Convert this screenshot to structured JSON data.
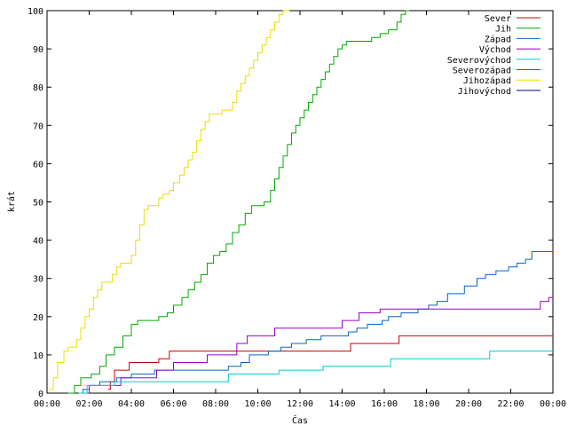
{
  "chart_data": {
    "type": "line",
    "xlabel": "Čas",
    "ylabel": "krát",
    "xlim": [
      0,
      24
    ],
    "ylim": [
      0,
      100
    ],
    "x_ticks": [
      {
        "v": 0,
        "label": "00:00"
      },
      {
        "v": 2,
        "label": "02:00"
      },
      {
        "v": 4,
        "label": "04:00"
      },
      {
        "v": 6,
        "label": "06:00"
      },
      {
        "v": 8,
        "label": "08:00"
      },
      {
        "v": 10,
        "label": "10:00"
      },
      {
        "v": 12,
        "label": "12:00"
      },
      {
        "v": 14,
        "label": "14:00"
      },
      {
        "v": 16,
        "label": "16:00"
      },
      {
        "v": 18,
        "label": "18:00"
      },
      {
        "v": 20,
        "label": "20:00"
      },
      {
        "v": 22,
        "label": "22:00"
      },
      {
        "v": 24,
        "label": "00:00"
      }
    ],
    "y_ticks": [
      {
        "v": 0,
        "label": "0"
      },
      {
        "v": 10,
        "label": "10"
      },
      {
        "v": 20,
        "label": "20"
      },
      {
        "v": 30,
        "label": "30"
      },
      {
        "v": 40,
        "label": "40"
      },
      {
        "v": 50,
        "label": "50"
      },
      {
        "v": 60,
        "label": "60"
      },
      {
        "v": 70,
        "label": "70"
      },
      {
        "v": 80,
        "label": "80"
      },
      {
        "v": 90,
        "label": "90"
      },
      {
        "v": 100,
        "label": "100"
      }
    ],
    "grid": false,
    "legend_position": "top-right",
    "series": [
      {
        "name": "Sever",
        "color": "#cc0000",
        "x": [
          2.9,
          3.0,
          3.2,
          3.9,
          5.3,
          5.8,
          7.9,
          11.0,
          14.4,
          16.7,
          24.0
        ],
        "y": [
          1,
          3,
          6,
          8,
          9,
          11,
          11,
          11,
          13,
          15,
          15
        ]
      },
      {
        "name": "Jih",
        "color": "#00aa00",
        "x": [
          1.0,
          1.3,
          1.6,
          2.1,
          2.5,
          2.8,
          3.2,
          3.6,
          4.0,
          4.3,
          5.0,
          5.3,
          5.7,
          6.0,
          6.4,
          6.7,
          7.0,
          7.3,
          7.6,
          7.9,
          8.2,
          8.5,
          8.8,
          9.1,
          9.4,
          9.7,
          10.0,
          10.3,
          10.6,
          10.8,
          11.0,
          11.2,
          11.4,
          11.6,
          11.8,
          12.0,
          12.2,
          12.4,
          12.6,
          12.8,
          13.0,
          13.2,
          13.4,
          13.6,
          13.8,
          14.0,
          14.2,
          14.4,
          15.0,
          15.4,
          15.8,
          16.2,
          16.6,
          16.8,
          17.0,
          17.2
        ],
        "y": [
          0,
          2,
          4,
          5,
          7,
          10,
          12,
          15,
          18,
          19,
          19,
          20,
          21,
          23,
          25,
          27,
          29,
          31,
          34,
          36,
          37,
          39,
          42,
          44,
          47,
          49,
          49,
          50,
          53,
          56,
          59,
          62,
          65,
          68,
          70,
          72,
          74,
          76,
          78,
          80,
          82,
          84,
          86,
          88,
          90,
          91,
          92,
          92,
          92,
          93,
          94,
          95,
          97,
          99,
          100,
          100
        ]
      },
      {
        "name": "Západ",
        "color": "#0066cc",
        "x": [
          1.5,
          1.7,
          2.0,
          2.5,
          3.3,
          4.0,
          5.1,
          6.0,
          6.7,
          8.6,
          9.2,
          9.6,
          10.5,
          11.1,
          11.6,
          12.3,
          13.0,
          14.3,
          14.7,
          15.2,
          15.9,
          16.2,
          16.8,
          17.6,
          18.1,
          18.5,
          19.0,
          19.8,
          20.4,
          20.8,
          21.3,
          21.9,
          22.3,
          22.7,
          23.0,
          24.0
        ],
        "y": [
          0,
          1,
          2,
          3,
          4,
          5,
          6,
          6,
          6,
          7,
          8,
          10,
          11,
          12,
          13,
          14,
          15,
          16,
          17,
          18,
          19,
          20,
          21,
          22,
          23,
          24,
          26,
          28,
          30,
          31,
          32,
          33,
          34,
          35,
          37,
          37
        ]
      },
      {
        "name": "Východ",
        "color": "#9900cc",
        "x": [
          1.6,
          2.0,
          3.5,
          5.2,
          6.0,
          7.6,
          9.0,
          9.5,
          10.8,
          11.6,
          14.0,
          14.8,
          15.8,
          18.0,
          19.0,
          23.4,
          23.8,
          24.0
        ],
        "y": [
          0,
          2,
          4,
          6,
          8,
          10,
          13,
          15,
          17,
          17,
          19,
          21,
          22,
          22,
          22,
          24,
          25,
          25
        ]
      },
      {
        "name": "Severovýchod",
        "color": "#00cccc",
        "x": [
          1.5,
          1.9,
          3.2,
          8.6,
          11.0,
          13.1,
          16.3,
          21.0,
          24.0
        ],
        "y": [
          0,
          2,
          3,
          5,
          6,
          7,
          9,
          11,
          11
        ]
      },
      {
        "name": "Severozápad",
        "color": "#cc3300",
        "x": [],
        "y": []
      },
      {
        "name": "Jihozápad",
        "color": "#eedd00",
        "x": [
          0.1,
          0.3,
          0.5,
          0.8,
          1.0,
          1.2,
          1.4,
          1.6,
          1.8,
          2.0,
          2.2,
          2.4,
          2.6,
          2.9,
          3.1,
          3.3,
          3.5,
          3.8,
          4.0,
          4.2,
          4.4,
          4.6,
          4.8,
          5.0,
          5.3,
          5.5,
          5.8,
          6.0,
          6.3,
          6.5,
          6.7,
          6.9,
          7.1,
          7.3,
          7.5,
          7.7,
          7.9,
          8.1,
          8.3,
          8.6,
          8.8,
          9.0,
          9.2,
          9.4,
          9.6,
          9.8,
          10.0,
          10.2,
          10.4,
          10.6,
          10.8,
          11.0,
          11.2,
          11.5
        ],
        "y": [
          1,
          4,
          8,
          11,
          12,
          12,
          14,
          17,
          20,
          22,
          25,
          27,
          29,
          29,
          31,
          33,
          34,
          34,
          36,
          40,
          44,
          48,
          49,
          49,
          51,
          52,
          53,
          55,
          57,
          59,
          61,
          63,
          66,
          69,
          71,
          73,
          73,
          73,
          74,
          74,
          76,
          79,
          81,
          83,
          85,
          87,
          89,
          91,
          93,
          95,
          97,
          99,
          100,
          100
        ]
      },
      {
        "name": "Jihovýchod",
        "color": "#000099",
        "x": [],
        "y": []
      }
    ]
  }
}
